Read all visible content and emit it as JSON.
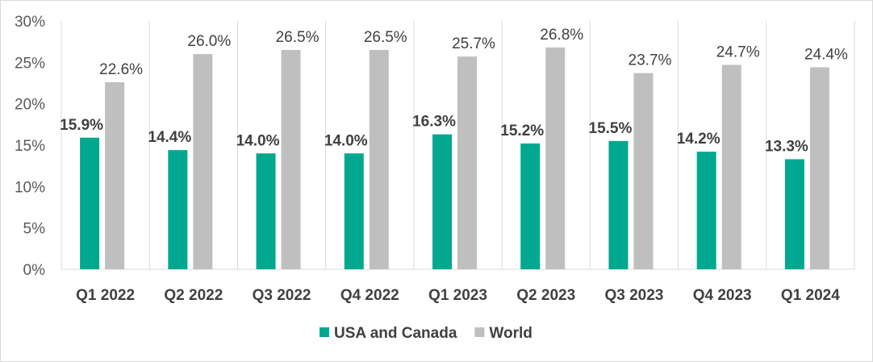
{
  "chart_data": {
    "type": "bar",
    "title": "",
    "xlabel": "",
    "ylabel": "",
    "categories": [
      "Q1 2022",
      "Q2 2022",
      "Q3 2022",
      "Q4 2022",
      "Q1 2023",
      "Q2 2023",
      "Q3 2023",
      "Q4 2023",
      "Q1 2024"
    ],
    "series": [
      {
        "name": "USA and Canada",
        "color": "#00A88F",
        "values": [
          15.9,
          14.4,
          14.0,
          14.0,
          16.3,
          15.2,
          15.5,
          14.2,
          13.3
        ],
        "labels": [
          "15.9%",
          "14.4%",
          "14.0%",
          "14.0%",
          "16.3%",
          "15.2%",
          "15.5%",
          "14.2%",
          "13.3%"
        ]
      },
      {
        "name": "World",
        "color": "#BFBFBF",
        "values": [
          22.6,
          26.0,
          26.5,
          26.5,
          25.7,
          26.8,
          23.7,
          24.7,
          24.4
        ],
        "labels": [
          "22.6%",
          "26.0%",
          "26.5%",
          "26.5%",
          "25.7%",
          "26.8%",
          "23.7%",
          "24.7%",
          "24.4%"
        ]
      }
    ],
    "ylim": [
      0,
      30
    ],
    "yticks": [
      "0%",
      "5%",
      "10%",
      "15%",
      "20%",
      "25%",
      "30%"
    ],
    "grid": "vertical category separators",
    "legend": "bottom"
  }
}
